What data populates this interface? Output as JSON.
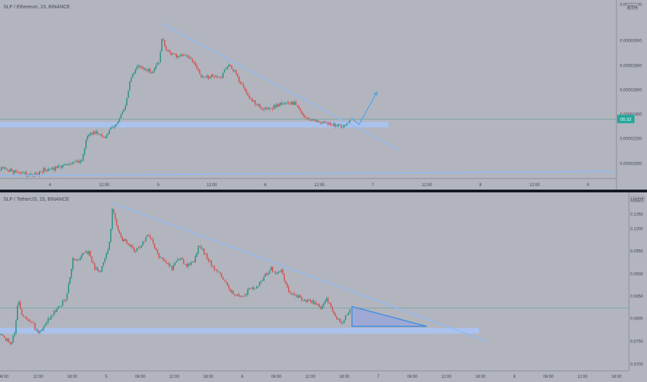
{
  "chart_data": [
    {
      "type": "candlestick",
      "title": "SLP / Ethereum, 15, BINANCE",
      "currency_badge": "ETH",
      "price_label": "05:32",
      "x_tick_labels": [
        "4",
        "12:00",
        "5",
        "12:00",
        "6",
        "12:00",
        "7",
        "12:00",
        "8",
        "12:00",
        "9"
      ],
      "y_tick_labels": [
        "0.00003200",
        "0.00003000",
        "0.00002800",
        "0.00002600",
        "0.00002400",
        "0.00002200",
        "0.00002000"
      ],
      "ylim": [
        1.99e-05,
        3.25e-05
      ],
      "current_price": 2.41e-05,
      "price_path": [
        [
          0,
          2.06e-05
        ],
        [
          12,
          2.05e-05
        ],
        [
          25,
          2.03e-05
        ],
        [
          40,
          2.02e-05
        ],
        [
          52,
          2.02e-05
        ],
        [
          62,
          2.05e-05
        ],
        [
          80,
          2.06e-05
        ],
        [
          100,
          2.09e-05
        ],
        [
          118,
          2.12e-05
        ],
        [
          126,
          2.3e-05
        ],
        [
          135,
          2.32e-05
        ],
        [
          145,
          2.3e-05
        ],
        [
          152,
          2.28e-05
        ],
        [
          160,
          2.35e-05
        ],
        [
          170,
          2.38e-05
        ],
        [
          180,
          2.5e-05
        ],
        [
          188,
          2.7e-05
        ],
        [
          198,
          2.79e-05
        ],
        [
          208,
          2.76e-05
        ],
        [
          220,
          2.74e-05
        ],
        [
          229,
          2.82e-05
        ],
        [
          234,
          3e-05
        ],
        [
          238,
          2.91e-05
        ],
        [
          248,
          2.86e-05
        ],
        [
          258,
          2.85e-05
        ],
        [
          268,
          2.87e-05
        ],
        [
          278,
          2.82e-05
        ],
        [
          290,
          2.7e-05
        ],
        [
          302,
          2.71e-05
        ],
        [
          318,
          2.7e-05
        ],
        [
          330,
          2.81e-05
        ],
        [
          338,
          2.74e-05
        ],
        [
          348,
          2.65e-05
        ],
        [
          358,
          2.57e-05
        ],
        [
          368,
          2.52e-05
        ],
        [
          380,
          2.48e-05
        ],
        [
          392,
          2.49e-05
        ],
        [
          402,
          2.51e-05
        ],
        [
          412,
          2.53e-05
        ],
        [
          425,
          2.52e-05
        ],
        [
          432,
          2.46e-05
        ],
        [
          440,
          2.42e-05
        ],
        [
          452,
          2.4e-05
        ],
        [
          465,
          2.38e-05
        ],
        [
          478,
          2.37e-05
        ],
        [
          492,
          2.36e-05
        ],
        [
          500,
          2.38e-05
        ],
        [
          506,
          2.42e-05
        ]
      ],
      "trendlines": [
        {
          "role": "descending-resistance",
          "from": [
            234,
            3.08e-05
          ],
          "to": [
            575,
            2.19e-05
          ]
        },
        {
          "role": "long-term-support",
          "from": [
            0,
            2.01e-05
          ],
          "to": [
            888,
            2.04e-05
          ]
        }
      ],
      "support_zone": {
        "x_from": 0,
        "x_to": 560,
        "y_from": 2.35e-05,
        "y_to": 2.39e-05
      },
      "projection": [
        [
          506,
          2.42e-05
        ],
        [
          517,
          2.37e-05
        ],
        [
          543,
          2.6e-05
        ]
      ]
    },
    {
      "type": "candlestick",
      "title": "SLP / TetherUS, 15, BINANCE",
      "currency_badge": "USDT",
      "x_tick_labels": [
        "06:00",
        "12:00",
        "18:00",
        "5",
        "06:00",
        "12:00",
        "18:00",
        "6",
        "06:00",
        "12:00",
        "18:00",
        "7",
        "06:00",
        "12:00",
        "18:00",
        "8",
        "06:00",
        "12:00",
        "18:00"
      ],
      "y_tick_labels": [
        "0.1050",
        "0.1000",
        "0.0950",
        "0.0900",
        "0.0850",
        "0.0800",
        "0.0750",
        "0.0700"
      ],
      "ylim": [
        0.0693,
        0.1062
      ],
      "current_price": 0.0823,
      "price_path": [
        [
          0,
          0.0773
        ],
        [
          8,
          0.076
        ],
        [
          16,
          0.0748
        ],
        [
          22,
          0.0778
        ],
        [
          26,
          0.084
        ],
        [
          32,
          0.0805
        ],
        [
          40,
          0.08
        ],
        [
          48,
          0.0792
        ],
        [
          52,
          0.0775
        ],
        [
          58,
          0.077
        ],
        [
          66,
          0.0792
        ],
        [
          75,
          0.081
        ],
        [
          85,
          0.0825
        ],
        [
          95,
          0.0845
        ],
        [
          100,
          0.088
        ],
        [
          105,
          0.0925
        ],
        [
          112,
          0.092
        ],
        [
          120,
          0.0935
        ],
        [
          128,
          0.094
        ],
        [
          136,
          0.0905
        ],
        [
          144,
          0.09
        ],
        [
          152,
          0.0925
        ],
        [
          158,
          0.096
        ],
        [
          162,
          0.1035
        ],
        [
          168,
          0.099
        ],
        [
          175,
          0.0965
        ],
        [
          185,
          0.0955
        ],
        [
          195,
          0.094
        ],
        [
          205,
          0.0955
        ],
        [
          213,
          0.098
        ],
        [
          220,
          0.096
        ],
        [
          228,
          0.093
        ],
        [
          238,
          0.0918
        ],
        [
          248,
          0.0905
        ],
        [
          260,
          0.0928
        ],
        [
          268,
          0.091
        ],
        [
          278,
          0.0915
        ],
        [
          286,
          0.0952
        ],
        [
          296,
          0.0935
        ],
        [
          305,
          0.091
        ],
        [
          315,
          0.0895
        ],
        [
          325,
          0.0875
        ],
        [
          335,
          0.0852
        ],
        [
          348,
          0.0845
        ],
        [
          358,
          0.086
        ],
        [
          370,
          0.0865
        ],
        [
          380,
          0.0885
        ],
        [
          390,
          0.0905
        ],
        [
          398,
          0.089
        ],
        [
          405,
          0.09
        ],
        [
          412,
          0.087
        ],
        [
          420,
          0.085
        ],
        [
          432,
          0.0845
        ],
        [
          442,
          0.0838
        ],
        [
          452,
          0.0835
        ],
        [
          462,
          0.0825
        ],
        [
          470,
          0.0845
        ],
        [
          478,
          0.0818
        ],
        [
          485,
          0.08
        ],
        [
          492,
          0.079
        ],
        [
          498,
          0.0805
        ],
        [
          505,
          0.0825
        ]
      ],
      "trendlines": [
        {
          "role": "descending-resistance",
          "from": [
            162,
            0.104
          ],
          "to": [
            702,
            0.0754
          ]
        }
      ],
      "support_zone": {
        "x_from": 0,
        "x_to": 690,
        "y_from": 0.077,
        "y_to": 0.0782
      },
      "projection_triangle": [
        [
          507,
          0.0826
        ],
        [
          507,
          0.0785
        ],
        [
          615,
          0.0785
        ]
      ]
    }
  ]
}
